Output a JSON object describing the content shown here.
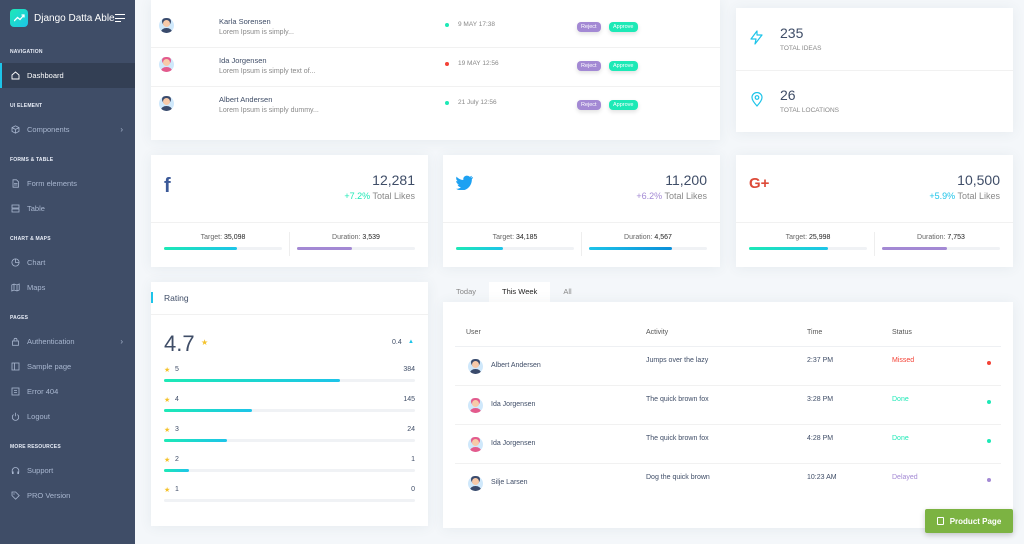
{
  "brand": {
    "name": "Django Datta Able"
  },
  "nav": {
    "sections": [
      {
        "caption": "NAVIGATION",
        "items": [
          {
            "label": "Dashboard",
            "icon": "home-icon",
            "active": true
          }
        ]
      },
      {
        "caption": "UI ELEMENT",
        "items": [
          {
            "label": "Components",
            "icon": "box-icon",
            "chevron": true
          }
        ]
      },
      {
        "caption": "FORMS & TABLE",
        "items": [
          {
            "label": "Form elements",
            "icon": "file-text-icon"
          },
          {
            "label": "Table",
            "icon": "server-icon"
          }
        ]
      },
      {
        "caption": "CHART & MAPS",
        "items": [
          {
            "label": "Chart",
            "icon": "pie-chart-icon"
          },
          {
            "label": "Maps",
            "icon": "map-icon"
          }
        ]
      },
      {
        "caption": "PAGES",
        "items": [
          {
            "label": "Authentication",
            "icon": "lock-icon",
            "chevron": true
          },
          {
            "label": "Sample page",
            "icon": "sidebar-icon"
          },
          {
            "label": "Error 404",
            "icon": "alert-icon"
          },
          {
            "label": "Logout",
            "icon": "power-icon"
          }
        ]
      },
      {
        "caption": "MORE RESOURCES",
        "items": [
          {
            "label": "Support",
            "icon": "headphones-icon"
          },
          {
            "label": "PRO Version",
            "icon": "tag-icon"
          }
        ]
      }
    ]
  },
  "recent_users": [
    {
      "name": "Karla Sorensen",
      "text": "Lorem Ipsum is simply...",
      "date": "9 MAY 17:38",
      "status": "green",
      "reject": "Reject",
      "approve": "Approve",
      "avatar": "blue"
    },
    {
      "name": "Ida Jorgensen",
      "text": "Lorem Ipsum is simply text of...",
      "date": "19 MAY 12:56",
      "status": "red",
      "reject": "Reject",
      "approve": "Approve",
      "avatar": "pink"
    },
    {
      "name": "Albert Andersen",
      "text": "Lorem Ipsum is simply dummy...",
      "date": "21 July 12:56",
      "status": "green",
      "reject": "Reject",
      "approve": "Approve",
      "avatar": "blue"
    }
  ],
  "ideas": {
    "value": "235",
    "label": "TOTAL IDEAS"
  },
  "locations": {
    "value": "26",
    "label": "TOTAL LOCATIONS"
  },
  "social": [
    {
      "icon": "facebook-icon",
      "glyph": "f",
      "color": "#3b5998",
      "value": "12,281",
      "change": "+7.2%",
      "change_color": "#1de9b6",
      "label": "Total Likes",
      "target_label": "Target:",
      "target": "35,098",
      "duration_label": "Duration:",
      "duration": "3,539",
      "target_pct": 0.62,
      "duration_pct": 0.47,
      "target_style": "grad-green",
      "duration_style": "purple"
    },
    {
      "icon": "twitter-icon",
      "glyph": "t",
      "color": "#1da1f2",
      "value": "11,200",
      "change": "+6.2%",
      "change_color": "#a389d4",
      "label": "Total Likes",
      "target_label": "Target:",
      "target": "34,185",
      "duration_label": "Duration:",
      "duration": "4,567",
      "target_pct": 0.4,
      "duration_pct": 0.7,
      "target_style": "grad-green",
      "duration_style": "grad-blue"
    },
    {
      "icon": "google-plus-icon",
      "glyph": "G+",
      "color": "#dd4b39",
      "value": "10,500",
      "change": "+5.9%",
      "change_color": "#1dc4e9",
      "label": "Total Likes",
      "target_label": "Target:",
      "target": "25,998",
      "duration_label": "Duration:",
      "duration": "7,753",
      "target_pct": 0.67,
      "duration_pct": 0.55,
      "target_style": "grad-green",
      "duration_style": "purple"
    }
  ],
  "rating": {
    "title": "Rating",
    "score": "4.7",
    "change": "0.4",
    "rows": [
      {
        "star": "5",
        "count": "384",
        "pct": 0.7
      },
      {
        "star": "4",
        "count": "145",
        "pct": 0.35
      },
      {
        "star": "3",
        "count": "24",
        "pct": 0.25
      },
      {
        "star": "2",
        "count": "1",
        "pct": 0.1
      },
      {
        "star": "1",
        "count": "0",
        "pct": 0
      }
    ]
  },
  "tabs": [
    {
      "label": "Today"
    },
    {
      "label": "This Week",
      "active": true
    },
    {
      "label": "All"
    }
  ],
  "activity": {
    "headers": {
      "user": "User",
      "activity": "Activity",
      "time": "Time",
      "status": "Status"
    },
    "rows": [
      {
        "user": "Albert Andersen",
        "activity": "Jumps over the lazy",
        "time": "2:37 PM",
        "status": "Missed",
        "color": "#f44236",
        "avatar": "blue"
      },
      {
        "user": "Ida Jorgensen",
        "activity": "The quick brown fox",
        "time": "3:28 PM",
        "status": "Done",
        "color": "#1de9b6",
        "avatar": "pink"
      },
      {
        "user": "Ida Jorgensen",
        "activity": "The quick brown fox",
        "time": "4:28 PM",
        "status": "Done",
        "color": "#1de9b6",
        "avatar": "pink"
      },
      {
        "user": "Silje Larsen",
        "activity": "Dog the quick brown",
        "time": "10:23 AM",
        "status": "Delayed",
        "color": "#a389d4",
        "avatar": "blue"
      }
    ]
  },
  "product_button": {
    "label": "Product Page"
  }
}
